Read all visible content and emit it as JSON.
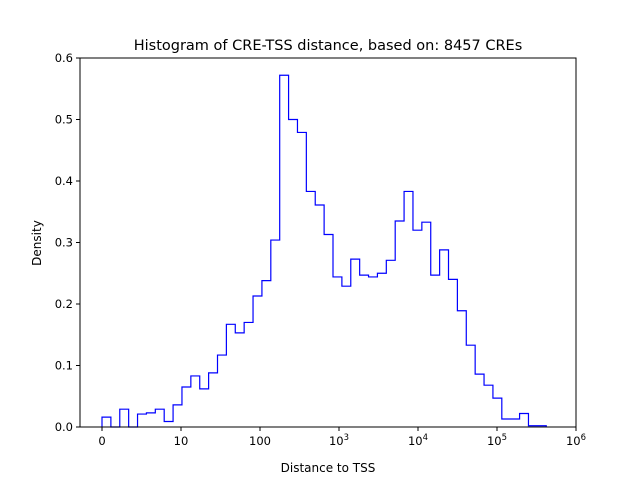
{
  "chart_data": {
    "type": "histogram",
    "title": "Histogram of CRE-TSS distance, based on: 8457 CREs",
    "xlabel": "Distance to TSS",
    "ylabel": "Density",
    "xscale": "symlog",
    "linthresh": 10,
    "xlim": [
      0,
      1000000
    ],
    "ylim": [
      0,
      0.6
    ],
    "bin_range": [
      0,
      420000
    ],
    "bin_count": 50,
    "series_color": "#0000ff",
    "yticks": [
      "0.0",
      "0.1",
      "0.2",
      "0.3",
      "0.4",
      "0.5",
      "0.6"
    ],
    "xticks": [
      {
        "value": 0,
        "label": "0"
      },
      {
        "value": 10,
        "label": "10"
      },
      {
        "value": 100,
        "label": "100"
      },
      {
        "value": 1000,
        "base": "10",
        "exp": "3"
      },
      {
        "value": 10000,
        "base": "10",
        "exp": "4"
      },
      {
        "value": 100000,
        "base": "10",
        "exp": "5"
      },
      {
        "value": 1000000,
        "base": "10",
        "exp": "6"
      }
    ],
    "densities": [
      0.016,
      0,
      0.029,
      0,
      0.021,
      0.023,
      0.029,
      0.009,
      0.036,
      0.065,
      0.083,
      0.062,
      0.088,
      0.117,
      0.167,
      0.153,
      0.17,
      0.213,
      0.238,
      0.304,
      0.572,
      0.5,
      0.479,
      0.383,
      0.361,
      0.313,
      0.244,
      0.229,
      0.273,
      0.247,
      0.244,
      0.25,
      0.271,
      0.335,
      0.383,
      0.32,
      0.333,
      0.247,
      0.288,
      0.24,
      0.189,
      0.133,
      0.086,
      0.068,
      0.047,
      0.013,
      0.013,
      0.022,
      0.002,
      0.002
    ]
  }
}
